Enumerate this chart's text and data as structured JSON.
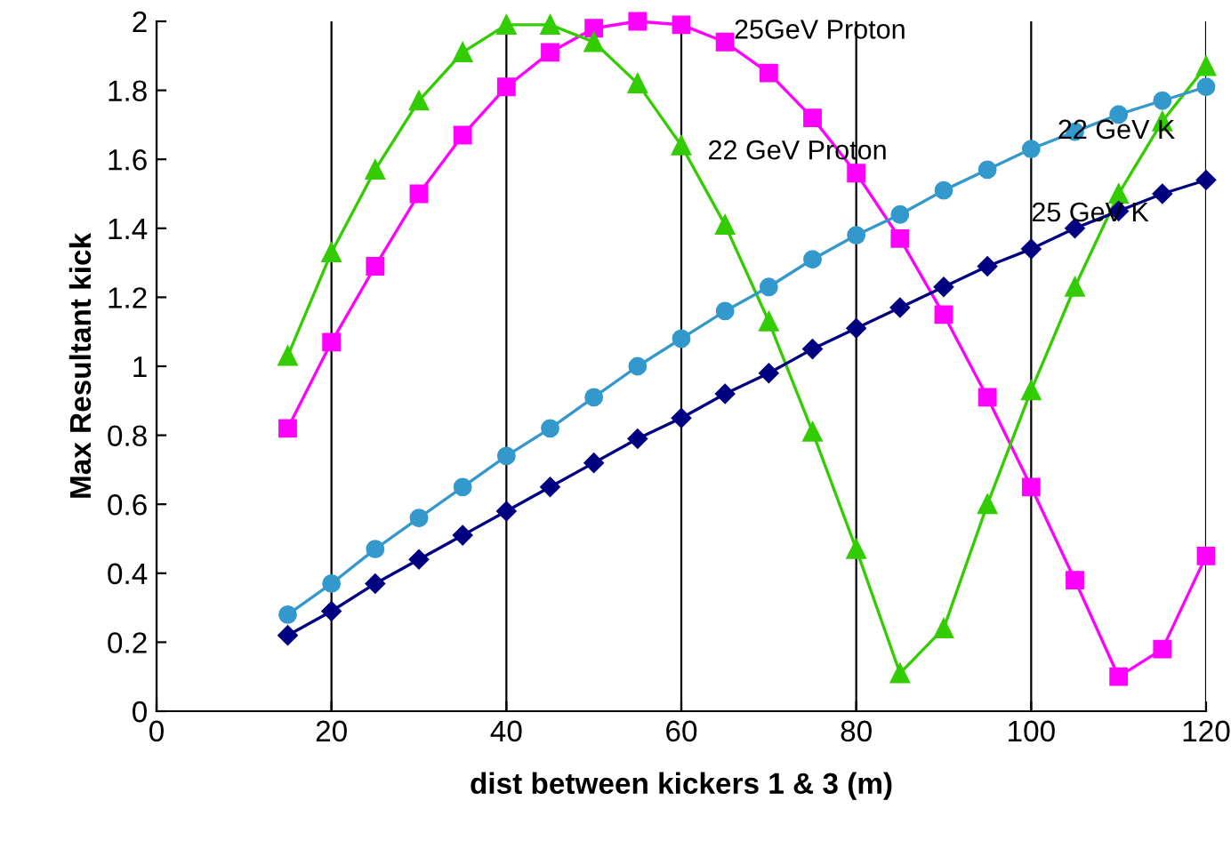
{
  "chart_data": {
    "type": "line",
    "xlabel": "dist between kickers 1 & 3 (m)",
    "ylabel": "Max Resultant kick",
    "xlim": [
      0,
      120
    ],
    "xticks": [
      0,
      20,
      40,
      60,
      80,
      100,
      120
    ],
    "ylim": [
      0,
      2
    ],
    "yticks": [
      0,
      0.2,
      0.4,
      0.6,
      0.8,
      1,
      1.2,
      1.4,
      1.6,
      1.8,
      2
    ],
    "grid": "x",
    "legend": false,
    "x": [
      15,
      20,
      25,
      30,
      35,
      40,
      45,
      50,
      55,
      60,
      65,
      70,
      75,
      80,
      85,
      90,
      95,
      100,
      105,
      110,
      115,
      120
    ],
    "series": [
      {
        "name": "25GeV Proton",
        "color": "#ff00ff",
        "marker": "square",
        "values": [
          0.82,
          1.07,
          1.29,
          1.5,
          1.67,
          1.81,
          1.91,
          1.98,
          2.0,
          1.99,
          1.94,
          1.85,
          1.72,
          1.56,
          1.37,
          1.15,
          0.91,
          0.65,
          0.38,
          0.1,
          0.18,
          0.45
        ]
      },
      {
        "name": "22 GeV Proton",
        "color": "#33cc00",
        "marker": "triangle",
        "values": [
          1.03,
          1.33,
          1.57,
          1.77,
          1.91,
          1.99,
          1.99,
          1.94,
          1.82,
          1.64,
          1.41,
          1.13,
          0.81,
          0.47,
          0.11,
          0.24,
          0.6,
          0.93,
          1.23,
          1.5,
          1.71,
          1.87
        ]
      },
      {
        "name": "22 GeV K",
        "color": "#3399cc",
        "marker": "circle",
        "values": [
          0.28,
          0.37,
          0.47,
          0.56,
          0.65,
          0.74,
          0.82,
          0.91,
          1.0,
          1.08,
          1.16,
          1.23,
          1.31,
          1.38,
          1.44,
          1.51,
          1.57,
          1.63,
          1.68,
          1.73,
          1.77,
          1.81
        ]
      },
      {
        "name": "25 GeV K",
        "color": "#000080",
        "marker": "diamond",
        "values": [
          0.22,
          0.29,
          0.37,
          0.44,
          0.51,
          0.58,
          0.65,
          0.72,
          0.79,
          0.85,
          0.92,
          0.98,
          1.05,
          1.11,
          1.17,
          1.23,
          1.29,
          1.34,
          1.4,
          1.45,
          1.5,
          1.54
        ]
      }
    ]
  }
}
